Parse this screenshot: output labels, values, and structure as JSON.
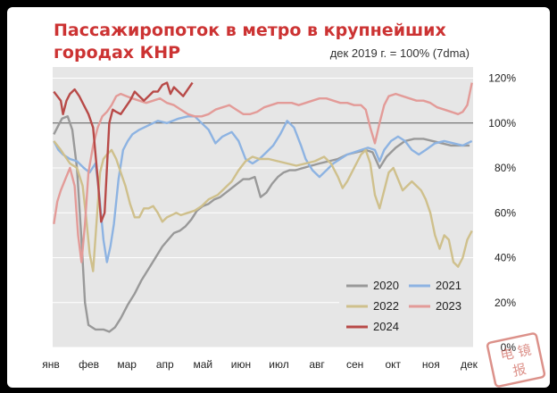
{
  "chart_data": {
    "type": "line",
    "title_line1": "Пассажиропоток в метро в крупнейших",
    "title_line2": "городах КНР",
    "subtitle": "дек 2019 г. = 100% (7dma)",
    "x_ticks": [
      "янв",
      "фев",
      "мар",
      "апр",
      "май",
      "июн",
      "июл",
      "авг",
      "сен",
      "окт",
      "ноя",
      "дек"
    ],
    "y_ticks": [
      "0%",
      "20%",
      "40%",
      "60%",
      "80%",
      "100%",
      "120%"
    ],
    "ylim": [
      0,
      125
    ],
    "xlim": [
      1,
      365
    ],
    "reference_line": 100,
    "legend_position": "bottom-right",
    "series": [
      {
        "name": "2020",
        "color": "#999999",
        "points": [
          [
            2,
            95
          ],
          [
            5,
            98
          ],
          [
            9,
            102
          ],
          [
            14,
            103
          ],
          [
            18,
            97
          ],
          [
            22,
            80
          ],
          [
            26,
            48
          ],
          [
            29,
            20
          ],
          [
            32,
            10
          ],
          [
            38,
            8
          ],
          [
            45,
            8
          ],
          [
            50,
            7
          ],
          [
            55,
            9
          ],
          [
            60,
            13
          ],
          [
            66,
            19
          ],
          [
            72,
            24
          ],
          [
            78,
            30
          ],
          [
            84,
            35
          ],
          [
            90,
            40
          ],
          [
            96,
            45
          ],
          [
            101,
            48
          ],
          [
            106,
            51
          ],
          [
            111,
            52
          ],
          [
            116,
            54
          ],
          [
            121,
            57
          ],
          [
            126,
            61
          ],
          [
            131,
            63
          ],
          [
            136,
            64
          ],
          [
            141,
            66
          ],
          [
            146,
            67
          ],
          [
            151,
            69
          ],
          [
            156,
            71
          ],
          [
            161,
            73
          ],
          [
            166,
            75
          ],
          [
            171,
            75
          ],
          [
            176,
            76
          ],
          [
            181,
            67
          ],
          [
            186,
            69
          ],
          [
            191,
            73
          ],
          [
            196,
            76
          ],
          [
            201,
            78
          ],
          [
            206,
            79
          ],
          [
            211,
            79
          ],
          [
            218,
            80
          ],
          [
            225,
            81
          ],
          [
            232,
            82
          ],
          [
            240,
            83
          ],
          [
            248,
            84
          ],
          [
            256,
            86
          ],
          [
            264,
            87
          ],
          [
            272,
            88
          ],
          [
            278,
            87
          ],
          [
            284,
            80
          ],
          [
            290,
            85
          ],
          [
            298,
            89
          ],
          [
            306,
            92
          ],
          [
            314,
            93
          ],
          [
            322,
            93
          ],
          [
            330,
            92
          ],
          [
            338,
            91
          ],
          [
            346,
            90
          ],
          [
            354,
            90
          ],
          [
            362,
            90
          ]
        ]
      },
      {
        "name": "2021",
        "color": "#8db3e2",
        "points": [
          [
            2,
            92
          ],
          [
            6,
            88
          ],
          [
            10,
            86
          ],
          [
            16,
            84
          ],
          [
            22,
            83
          ],
          [
            28,
            80
          ],
          [
            33,
            78
          ],
          [
            38,
            82
          ],
          [
            41,
            70
          ],
          [
            45,
            48
          ],
          [
            48,
            38
          ],
          [
            51,
            45
          ],
          [
            54,
            55
          ],
          [
            58,
            75
          ],
          [
            62,
            88
          ],
          [
            66,
            92
          ],
          [
            70,
            95
          ],
          [
            76,
            97
          ],
          [
            84,
            99
          ],
          [
            92,
            101
          ],
          [
            100,
            100
          ],
          [
            110,
            102
          ],
          [
            118,
            103
          ],
          [
            124,
            103
          ],
          [
            130,
            100
          ],
          [
            136,
            97
          ],
          [
            142,
            91
          ],
          [
            148,
            94
          ],
          [
            156,
            96
          ],
          [
            162,
            92
          ],
          [
            168,
            84
          ],
          [
            174,
            82
          ],
          [
            180,
            84
          ],
          [
            186,
            87
          ],
          [
            192,
            90
          ],
          [
            198,
            95
          ],
          [
            204,
            101
          ],
          [
            210,
            98
          ],
          [
            216,
            90
          ],
          [
            220,
            84
          ],
          [
            226,
            79
          ],
          [
            232,
            76
          ],
          [
            238,
            79
          ],
          [
            244,
            82
          ],
          [
            250,
            84
          ],
          [
            256,
            86
          ],
          [
            262,
            87
          ],
          [
            268,
            88
          ],
          [
            274,
            89
          ],
          [
            280,
            88
          ],
          [
            284,
            83
          ],
          [
            288,
            88
          ],
          [
            294,
            92
          ],
          [
            300,
            94
          ],
          [
            306,
            92
          ],
          [
            312,
            88
          ],
          [
            318,
            86
          ],
          [
            324,
            88
          ],
          [
            332,
            91
          ],
          [
            340,
            92
          ],
          [
            348,
            91
          ],
          [
            356,
            90
          ],
          [
            364,
            92
          ]
        ]
      },
      {
        "name": "2022",
        "color": "#cfc08c",
        "points": [
          [
            2,
            92
          ],
          [
            8,
            88
          ],
          [
            12,
            85
          ],
          [
            16,
            82
          ],
          [
            22,
            80
          ],
          [
            27,
            72
          ],
          [
            30,
            58
          ],
          [
            33,
            42
          ],
          [
            36,
            34
          ],
          [
            39,
            56
          ],
          [
            42,
            78
          ],
          [
            45,
            84
          ],
          [
            48,
            86
          ],
          [
            52,
            88
          ],
          [
            56,
            84
          ],
          [
            60,
            78
          ],
          [
            64,
            72
          ],
          [
            68,
            64
          ],
          [
            72,
            58
          ],
          [
            76,
            58
          ],
          [
            80,
            62
          ],
          [
            84,
            62
          ],
          [
            88,
            63
          ],
          [
            92,
            60
          ],
          [
            96,
            56
          ],
          [
            100,
            58
          ],
          [
            104,
            59
          ],
          [
            108,
            60
          ],
          [
            112,
            59
          ],
          [
            118,
            60
          ],
          [
            124,
            61
          ],
          [
            130,
            63
          ],
          [
            136,
            66
          ],
          [
            144,
            68
          ],
          [
            150,
            71
          ],
          [
            156,
            74
          ],
          [
            162,
            79
          ],
          [
            168,
            83
          ],
          [
            174,
            85
          ],
          [
            180,
            84
          ],
          [
            188,
            84
          ],
          [
            196,
            83
          ],
          [
            204,
            82
          ],
          [
            212,
            81
          ],
          [
            220,
            82
          ],
          [
            228,
            83
          ],
          [
            236,
            85
          ],
          [
            242,
            82
          ],
          [
            248,
            76
          ],
          [
            252,
            71
          ],
          [
            256,
            74
          ],
          [
            262,
            80
          ],
          [
            268,
            86
          ],
          [
            272,
            88
          ],
          [
            276,
            82
          ],
          [
            280,
            68
          ],
          [
            284,
            62
          ],
          [
            288,
            70
          ],
          [
            292,
            78
          ],
          [
            296,
            80
          ],
          [
            300,
            75
          ],
          [
            304,
            70
          ],
          [
            308,
            72
          ],
          [
            312,
            74
          ],
          [
            316,
            72
          ],
          [
            320,
            70
          ],
          [
            324,
            66
          ],
          [
            328,
            60
          ],
          [
            332,
            50
          ],
          [
            336,
            44
          ],
          [
            340,
            50
          ],
          [
            344,
            48
          ],
          [
            348,
            38
          ],
          [
            352,
            36
          ],
          [
            356,
            40
          ],
          [
            360,
            48
          ],
          [
            364,
            52
          ]
        ]
      },
      {
        "name": "2023",
        "color": "#e39b98",
        "points": [
          [
            2,
            55
          ],
          [
            5,
            65
          ],
          [
            8,
            70
          ],
          [
            12,
            75
          ],
          [
            16,
            80
          ],
          [
            20,
            72
          ],
          [
            23,
            50
          ],
          [
            26,
            38
          ],
          [
            29,
            55
          ],
          [
            32,
            78
          ],
          [
            36,
            90
          ],
          [
            40,
            98
          ],
          [
            44,
            103
          ],
          [
            48,
            105
          ],
          [
            52,
            108
          ],
          [
            56,
            112
          ],
          [
            60,
            113
          ],
          [
            65,
            112
          ],
          [
            70,
            111
          ],
          [
            76,
            110
          ],
          [
            82,
            109
          ],
          [
            88,
            110
          ],
          [
            94,
            111
          ],
          [
            100,
            109
          ],
          [
            106,
            108
          ],
          [
            112,
            106
          ],
          [
            118,
            104
          ],
          [
            124,
            103
          ],
          [
            130,
            103
          ],
          [
            136,
            104
          ],
          [
            142,
            106
          ],
          [
            148,
            107
          ],
          [
            154,
            108
          ],
          [
            160,
            106
          ],
          [
            166,
            104
          ],
          [
            172,
            104
          ],
          [
            178,
            105
          ],
          [
            184,
            107
          ],
          [
            190,
            108
          ],
          [
            196,
            109
          ],
          [
            202,
            109
          ],
          [
            208,
            109
          ],
          [
            214,
            108
          ],
          [
            220,
            109
          ],
          [
            226,
            110
          ],
          [
            232,
            111
          ],
          [
            238,
            111
          ],
          [
            244,
            110
          ],
          [
            250,
            109
          ],
          [
            256,
            109
          ],
          [
            262,
            108
          ],
          [
            268,
            108
          ],
          [
            272,
            106
          ],
          [
            276,
            98
          ],
          [
            280,
            91
          ],
          [
            284,
            100
          ],
          [
            288,
            108
          ],
          [
            292,
            112
          ],
          [
            298,
            113
          ],
          [
            304,
            112
          ],
          [
            310,
            111
          ],
          [
            316,
            110
          ],
          [
            322,
            110
          ],
          [
            328,
            109
          ],
          [
            334,
            107
          ],
          [
            340,
            106
          ],
          [
            346,
            105
          ],
          [
            352,
            104
          ],
          [
            356,
            105
          ],
          [
            360,
            108
          ],
          [
            364,
            118
          ]
        ]
      },
      {
        "name": "2024",
        "color": "#b84a48",
        "points": [
          [
            2,
            114
          ],
          [
            5,
            112
          ],
          [
            8,
            110
          ],
          [
            10,
            104
          ],
          [
            13,
            110
          ],
          [
            16,
            113
          ],
          [
            20,
            115
          ],
          [
            24,
            112
          ],
          [
            28,
            108
          ],
          [
            32,
            104
          ],
          [
            36,
            98
          ],
          [
            40,
            75
          ],
          [
            43,
            56
          ],
          [
            46,
            60
          ],
          [
            48,
            80
          ],
          [
            50,
            100
          ],
          [
            53,
            106
          ],
          [
            56,
            105
          ],
          [
            60,
            104
          ],
          [
            64,
            107
          ],
          [
            68,
            110
          ],
          [
            72,
            114
          ],
          [
            76,
            112
          ],
          [
            80,
            110
          ],
          [
            84,
            112
          ],
          [
            88,
            114
          ],
          [
            92,
            114
          ],
          [
            96,
            117
          ],
          [
            100,
            118
          ],
          [
            103,
            113
          ],
          [
            106,
            116
          ],
          [
            110,
            114
          ],
          [
            114,
            112
          ],
          [
            118,
            115
          ],
          [
            122,
            118
          ]
        ]
      }
    ]
  },
  "stamp_text": "电 镜 报"
}
